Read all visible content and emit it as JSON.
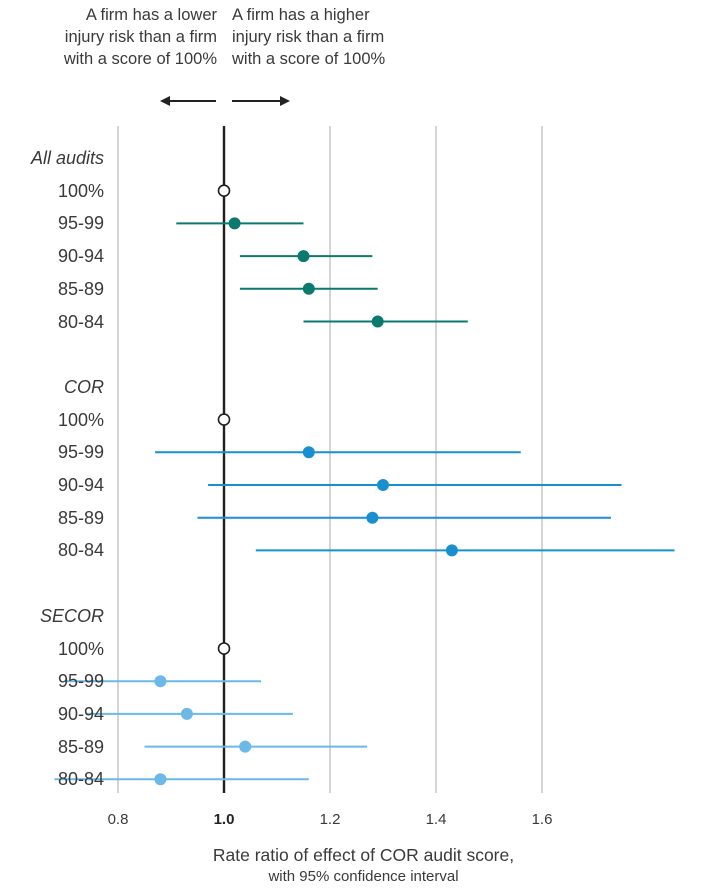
{
  "annotations": {
    "left": [
      "A firm has a lower",
      "injury risk than a firm",
      "with a score of 100%"
    ],
    "right": [
      "A firm has a higher",
      "injury risk than a firm",
      "with a score of 100%"
    ]
  },
  "chart_data": {
    "type": "forest",
    "xlabel": "Rate ratio of effect of COR audit score,",
    "xlabel_sub": "with 95% confidence interval",
    "xlim": [
      0.8,
      1.8
    ],
    "reference_line": 1.0,
    "ticks": [
      "0.8",
      "1.0",
      "1.2",
      "1.4",
      "1.6"
    ],
    "tick_values": [
      0.8,
      1.0,
      1.2,
      1.4,
      1.6
    ],
    "grid": true,
    "groups": [
      {
        "name": "All audits",
        "color": "#0b7a6e",
        "rows": [
          {
            "label": "100%",
            "ratio": 1.0,
            "reference": true
          },
          {
            "label": "95-99",
            "ratio": 1.02,
            "lower": 0.91,
            "upper": 1.15
          },
          {
            "label": "90-94",
            "ratio": 1.15,
            "lower": 1.03,
            "upper": 1.28
          },
          {
            "label": "85-89",
            "ratio": 1.16,
            "lower": 1.03,
            "upper": 1.29
          },
          {
            "label": "80-84",
            "ratio": 1.29,
            "lower": 1.15,
            "upper": 1.46
          }
        ]
      },
      {
        "name": "COR",
        "color": "#1a8fd0",
        "rows": [
          {
            "label": "100%",
            "ratio": 1.0,
            "reference": true
          },
          {
            "label": "95-99",
            "ratio": 1.16,
            "lower": 0.87,
            "upper": 1.56
          },
          {
            "label": "90-94",
            "ratio": 1.3,
            "lower": 0.97,
            "upper": 1.75
          },
          {
            "label": "85-89",
            "ratio": 1.28,
            "lower": 0.95,
            "upper": 1.73
          },
          {
            "label": "80-84",
            "ratio": 1.43,
            "lower": 1.06,
            "upper": 1.85
          }
        ]
      },
      {
        "name": "SECOR",
        "color": "#6cb8e6",
        "rows": [
          {
            "label": "100%",
            "ratio": 1.0,
            "reference": true
          },
          {
            "label": "95-99",
            "ratio": 0.88,
            "lower": 0.7,
            "upper": 1.07
          },
          {
            "label": "90-94",
            "ratio": 0.93,
            "lower": 0.74,
            "upper": 1.13
          },
          {
            "label": "85-89",
            "ratio": 1.04,
            "lower": 0.85,
            "upper": 1.27
          },
          {
            "label": "80-84",
            "ratio": 0.88,
            "lower": 0.68,
            "upper": 1.16
          }
        ]
      }
    ]
  }
}
